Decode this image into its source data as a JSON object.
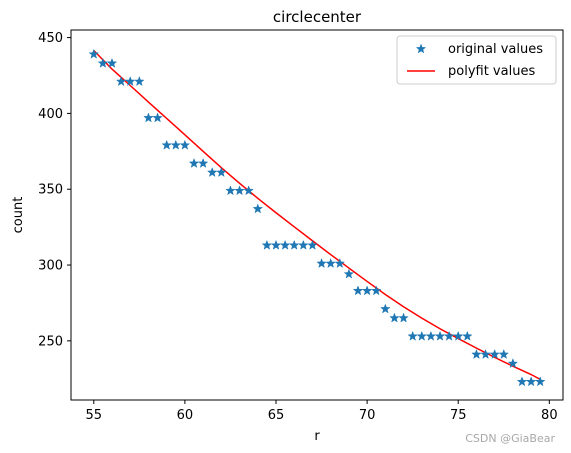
{
  "chart_data": {
    "type": "scatter",
    "title": "circlecenter",
    "xlabel": "r",
    "ylabel": "count",
    "xlim": [
      53.75,
      80.75
    ],
    "ylim": [
      211,
      455
    ],
    "xticks": [
      55,
      60,
      65,
      70,
      75,
      80
    ],
    "yticks": [
      250,
      300,
      350,
      400,
      450
    ],
    "legend_position": "top-right",
    "series": [
      {
        "name": "original values",
        "kind": "scatter",
        "marker": "star",
        "color": "#1f77b4",
        "x": [
          55,
          55.5,
          56,
          56.5,
          57,
          57.5,
          58,
          58.5,
          59,
          59.5,
          60,
          60.5,
          61,
          61.5,
          62,
          62.5,
          63,
          63.5,
          64,
          64.5,
          65,
          65.5,
          66,
          66.5,
          67,
          67.5,
          68,
          68.5,
          69,
          69.5,
          70,
          70.5,
          71,
          71.5,
          72,
          72.5,
          73,
          73.5,
          74,
          74.5,
          75,
          75.5,
          76,
          76.5,
          77,
          77.5,
          78,
          78.5,
          79,
          79.5
        ],
        "y": [
          439,
          433,
          433,
          421,
          421,
          421,
          397,
          397,
          379,
          379,
          379,
          367,
          367,
          361,
          361,
          349,
          349,
          349,
          337,
          313,
          313,
          313,
          313,
          313,
          313,
          301,
          301,
          301,
          294,
          283,
          283,
          283,
          271,
          265,
          265,
          253,
          253,
          253,
          253,
          253,
          253,
          253,
          241,
          241,
          241,
          241,
          235,
          223,
          223,
          223
        ]
      },
      {
        "name": "polyfit values",
        "kind": "line",
        "color": "#ff0000",
        "x": [
          55,
          56,
          57,
          58,
          59,
          60,
          61,
          62,
          63,
          64,
          65,
          66,
          67,
          68,
          69,
          70,
          71,
          72,
          73,
          74,
          75,
          76,
          77,
          78,
          79,
          79.5
        ],
        "y": [
          441.5,
          429.2,
          418.4,
          407.5,
          396.7,
          385.9,
          375,
          364.2,
          353.9,
          344,
          334.5,
          325.2,
          316,
          306.9,
          298,
          289.2,
          280.6,
          272.5,
          265,
          258,
          251.5,
          245.2,
          239.1,
          233.3,
          227.8,
          224.6
        ]
      }
    ]
  },
  "watermark": "CSDN @GiaBear"
}
